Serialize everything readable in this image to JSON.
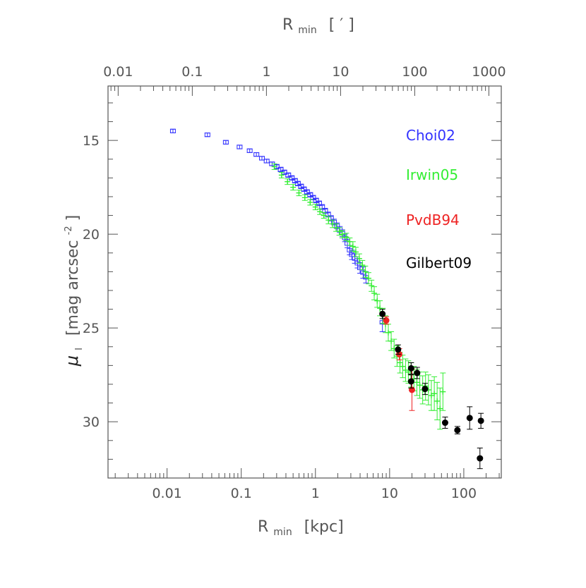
{
  "chart_data": {
    "type": "scatter",
    "x_bottom": {
      "label_main": "R",
      "label_sub": "min",
      "label_unit": "[kpc]",
      "scale": "log",
      "range": [
        0.0016,
        320
      ],
      "tick_values": [
        0.01,
        0.1,
        1,
        10,
        100
      ],
      "tick_labels": [
        "0.01",
        "0.1",
        "1",
        "10",
        "100"
      ]
    },
    "x_top": {
      "label_main": "R",
      "label_sub": "min",
      "label_unit": "[ ′ ]",
      "scale": "log",
      "range": [
        0.0073,
        1470
      ],
      "tick_values": [
        0.01,
        0.1,
        1,
        10,
        100,
        1000
      ],
      "tick_labels": [
        "0.01",
        "0.1",
        "1",
        "10",
        "100",
        "1000"
      ]
    },
    "y": {
      "label_main": "μ",
      "label_sub": "I",
      "label_unit": "[mag arcsec",
      "label_sup": "-2",
      "label_close": "]",
      "inverted": true,
      "range": [
        12.1,
        33.0
      ],
      "tick_values": [
        15,
        20,
        25,
        30
      ],
      "tick_labels": [
        "15",
        "20",
        "25",
        "30"
      ]
    },
    "grid": false,
    "legend_position": "top-right",
    "series": [
      {
        "name": "Choi02",
        "color": "#3333ff",
        "marker": "square",
        "points": [
          [
            0.012,
            14.5,
            0.1
          ],
          [
            0.035,
            14.7,
            0.1
          ],
          [
            0.062,
            15.1,
            0.1
          ],
          [
            0.095,
            15.35,
            0.1
          ],
          [
            0.13,
            15.55,
            0.1
          ],
          [
            0.16,
            15.75,
            0.1
          ],
          [
            0.19,
            15.95,
            0.1
          ],
          [
            0.22,
            16.1,
            0.1
          ],
          [
            0.26,
            16.25,
            0.1
          ],
          [
            0.3,
            16.4,
            0.12
          ],
          [
            0.34,
            16.55,
            0.12
          ],
          [
            0.38,
            16.7,
            0.12
          ],
          [
            0.43,
            16.85,
            0.12
          ],
          [
            0.48,
            17.0,
            0.12
          ],
          [
            0.53,
            17.15,
            0.12
          ],
          [
            0.58,
            17.3,
            0.12
          ],
          [
            0.64,
            17.45,
            0.12
          ],
          [
            0.7,
            17.6,
            0.12
          ],
          [
            0.77,
            17.75,
            0.12
          ],
          [
            0.85,
            17.9,
            0.12
          ],
          [
            0.93,
            18.05,
            0.12
          ],
          [
            1.02,
            18.2,
            0.12
          ],
          [
            1.12,
            18.35,
            0.12
          ],
          [
            1.23,
            18.55,
            0.13
          ],
          [
            1.35,
            18.75,
            0.13
          ],
          [
            1.48,
            18.95,
            0.13
          ],
          [
            1.62,
            19.15,
            0.14
          ],
          [
            1.78,
            19.35,
            0.15
          ],
          [
            1.95,
            19.55,
            0.15
          ],
          [
            2.13,
            19.75,
            0.16
          ],
          [
            2.3,
            19.95,
            0.18
          ],
          [
            2.5,
            20.2,
            0.2
          ],
          [
            2.7,
            20.5,
            0.22
          ],
          [
            2.9,
            20.85,
            0.25
          ],
          [
            3.1,
            21.1,
            0.25
          ],
          [
            3.4,
            21.3,
            0.25
          ],
          [
            3.7,
            21.55,
            0.25
          ],
          [
            4.0,
            21.8,
            0.28
          ],
          [
            4.4,
            22.05,
            0.3
          ],
          [
            4.8,
            22.3,
            0.3
          ],
          [
            8.0,
            24.7,
            0.5
          ]
        ]
      },
      {
        "name": "Irwin05",
        "color": "#33ee33",
        "marker": "plus",
        "points": [
          [
            0.28,
            16.4,
            0.15
          ],
          [
            0.35,
            16.85,
            0.15
          ],
          [
            0.42,
            17.2,
            0.15
          ],
          [
            0.5,
            17.5,
            0.15
          ],
          [
            0.6,
            17.8,
            0.15
          ],
          [
            0.72,
            18.05,
            0.15
          ],
          [
            0.85,
            18.3,
            0.15
          ],
          [
            1.0,
            18.55,
            0.15
          ],
          [
            1.15,
            18.8,
            0.15
          ],
          [
            1.3,
            19.0,
            0.15
          ],
          [
            1.5,
            19.25,
            0.2
          ],
          [
            1.7,
            19.45,
            0.2
          ],
          [
            1.9,
            19.65,
            0.2
          ],
          [
            2.1,
            19.85,
            0.2
          ],
          [
            2.3,
            20.0,
            0.2
          ],
          [
            2.6,
            20.15,
            0.2
          ],
          [
            2.9,
            20.4,
            0.2
          ],
          [
            3.2,
            20.65,
            0.25
          ],
          [
            3.5,
            20.95,
            0.25
          ],
          [
            3.9,
            21.3,
            0.25
          ],
          [
            4.3,
            21.65,
            0.25
          ],
          [
            4.7,
            22.0,
            0.3
          ],
          [
            5.2,
            22.35,
            0.3
          ],
          [
            5.7,
            22.75,
            0.3
          ],
          [
            6.2,
            23.15,
            0.35
          ],
          [
            6.8,
            23.55,
            0.35
          ],
          [
            7.4,
            23.95,
            0.4
          ],
          [
            8.1,
            24.35,
            0.4
          ],
          [
            8.8,
            24.8,
            0.45
          ],
          [
            9.6,
            25.25,
            0.45
          ],
          [
            10.5,
            25.7,
            0.5
          ],
          [
            11.5,
            26.1,
            0.5
          ],
          [
            12.6,
            26.5,
            0.55
          ],
          [
            13.8,
            26.85,
            0.55
          ],
          [
            15.0,
            27.05,
            0.6
          ],
          [
            16.4,
            27.25,
            0.6
          ],
          [
            17.9,
            27.35,
            0.6
          ],
          [
            19.5,
            27.5,
            0.65
          ],
          [
            21.3,
            27.7,
            0.65
          ],
          [
            23.3,
            27.9,
            0.7
          ],
          [
            25.5,
            28.05,
            0.7
          ],
          [
            27.9,
            28.3,
            0.75
          ],
          [
            30.5,
            28.1,
            0.75
          ],
          [
            33.4,
            28.3,
            0.8
          ],
          [
            36.5,
            28.6,
            0.8
          ],
          [
            40.0,
            28.5,
            0.9
          ],
          [
            43.7,
            28.9,
            1.0
          ],
          [
            47.8,
            29.3,
            1.1
          ],
          [
            52.3,
            28.4,
            1.0
          ]
        ]
      },
      {
        "name": "PvdB94",
        "color": "#ee2222",
        "marker": "circle",
        "points": [
          [
            9.0,
            24.6,
            0.2
          ],
          [
            13.5,
            26.4,
            0.3
          ],
          [
            20.0,
            28.3,
            1.1
          ]
        ]
      },
      {
        "name": "Gilbert09",
        "color": "#000000",
        "marker": "circle",
        "points": [
          [
            8.0,
            24.25,
            0.25
          ],
          [
            13.0,
            26.15,
            0.25
          ],
          [
            19.5,
            27.15,
            0.3
          ],
          [
            19.5,
            27.85,
            0.35
          ],
          [
            23.5,
            27.4,
            0.3
          ],
          [
            30.0,
            28.25,
            0.3
          ],
          [
            56.0,
            30.05,
            0.3
          ],
          [
            82.0,
            30.45,
            0.2
          ],
          [
            120.0,
            29.8,
            0.6
          ],
          [
            170.0,
            29.95,
            0.4
          ],
          [
            165.0,
            31.95,
            0.55
          ]
        ]
      }
    ]
  }
}
